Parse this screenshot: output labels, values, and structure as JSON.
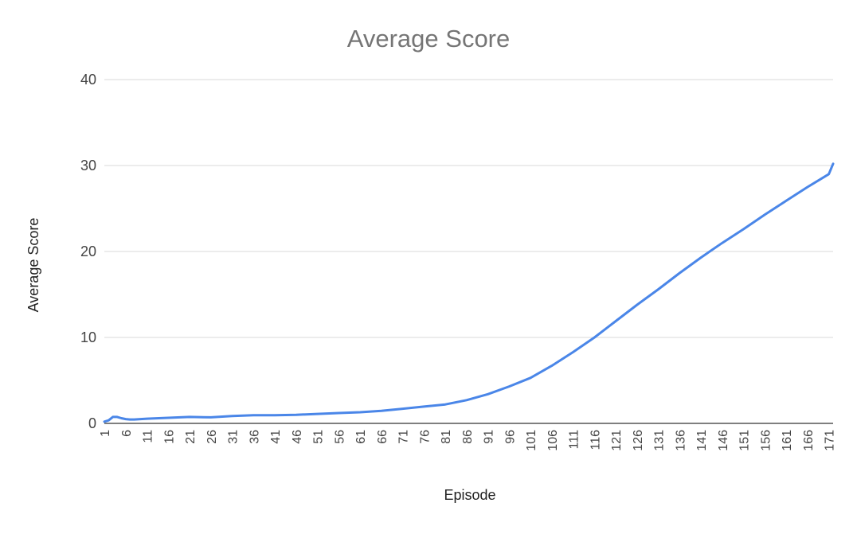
{
  "chart_data": {
    "type": "line",
    "title": "Average Score",
    "xlabel": "Episode",
    "ylabel": "Average Score",
    "ylim": [
      0,
      40
    ],
    "yticks": [
      0,
      10,
      20,
      30,
      40
    ],
    "xlim": [
      1,
      172
    ],
    "xticks": [
      1,
      6,
      11,
      16,
      21,
      26,
      31,
      36,
      41,
      46,
      51,
      56,
      61,
      66,
      71,
      76,
      81,
      86,
      91,
      96,
      101,
      106,
      111,
      116,
      121,
      126,
      131,
      136,
      141,
      146,
      151,
      156,
      161,
      166,
      171
    ],
    "grid": true,
    "legend": "none",
    "colors": {
      "line": "#4a86e8",
      "title": "#757575",
      "grid": "#d9d9d9"
    },
    "series": [
      {
        "points": [
          [
            1,
            0.2
          ],
          [
            2,
            0.35
          ],
          [
            3,
            0.75
          ],
          [
            4,
            0.75
          ],
          [
            5,
            0.6
          ],
          [
            6,
            0.5
          ],
          [
            7,
            0.45
          ],
          [
            8,
            0.45
          ],
          [
            11,
            0.55
          ],
          [
            16,
            0.65
          ],
          [
            21,
            0.75
          ],
          [
            26,
            0.7
          ],
          [
            31,
            0.85
          ],
          [
            36,
            0.95
          ],
          [
            41,
            0.95
          ],
          [
            46,
            1.0
          ],
          [
            51,
            1.1
          ],
          [
            56,
            1.2
          ],
          [
            61,
            1.3
          ],
          [
            66,
            1.45
          ],
          [
            71,
            1.7
          ],
          [
            76,
            1.95
          ],
          [
            81,
            2.2
          ],
          [
            86,
            2.7
          ],
          [
            91,
            3.4
          ],
          [
            96,
            4.3
          ],
          [
            101,
            5.3
          ],
          [
            106,
            6.7
          ],
          [
            111,
            8.3
          ],
          [
            116,
            10.0
          ],
          [
            121,
            11.9
          ],
          [
            126,
            13.8
          ],
          [
            131,
            15.6
          ],
          [
            136,
            17.5
          ],
          [
            141,
            19.3
          ],
          [
            146,
            21.0
          ],
          [
            151,
            22.6
          ],
          [
            156,
            24.3
          ],
          [
            161,
            25.9
          ],
          [
            166,
            27.5
          ],
          [
            171,
            29.0
          ],
          [
            172,
            30.2
          ]
        ]
      }
    ]
  }
}
